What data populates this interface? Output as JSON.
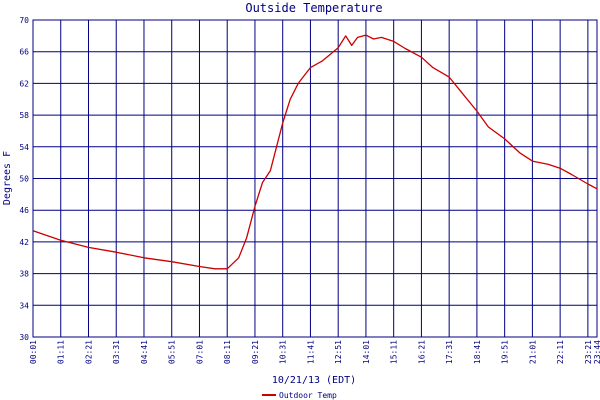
{
  "chart_data": {
    "type": "line",
    "title": "Outside Temperature",
    "ylabel": "Degrees F",
    "xlabel": "10/21/13 (EDT)",
    "ylim": [
      30,
      70
    ],
    "yticks": [
      30,
      34,
      38,
      42,
      46,
      50,
      54,
      58,
      62,
      66,
      70
    ],
    "xticks": [
      "00:01",
      "01:11",
      "02:21",
      "03:31",
      "04:41",
      "05:51",
      "07:01",
      "08:11",
      "09:21",
      "10:31",
      "11:41",
      "12:51",
      "14:01",
      "15:11",
      "16:21",
      "17:31",
      "18:41",
      "19:51",
      "21:01",
      "22:11",
      "23:21",
      "23:44"
    ],
    "grid": true,
    "legend": "bottom-left",
    "colors": {
      "line": "#cc0000",
      "grid": "#000080",
      "text": "#000080"
    },
    "series": [
      {
        "name": "Outdoor Temp",
        "x": [
          "00:01",
          "01:11",
          "02:21",
          "03:31",
          "04:41",
          "05:51",
          "07:01",
          "07:40",
          "08:11",
          "08:40",
          "09:00",
          "09:21",
          "09:40",
          "10:00",
          "10:31",
          "10:50",
          "11:10",
          "11:41",
          "12:10",
          "12:51",
          "13:10",
          "13:25",
          "13:40",
          "14:01",
          "14:20",
          "14:40",
          "15:11",
          "15:40",
          "16:21",
          "16:50",
          "17:31",
          "18:00",
          "18:41",
          "19:10",
          "19:51",
          "20:30",
          "21:01",
          "21:40",
          "22:11",
          "22:40",
          "23:21",
          "23:44"
        ],
        "values": [
          43.4,
          42.2,
          41.3,
          40.7,
          40.0,
          39.5,
          38.9,
          38.6,
          38.6,
          40.0,
          42.5,
          46.5,
          49.5,
          51.0,
          57.0,
          60.0,
          62.0,
          64.0,
          64.8,
          66.5,
          68.0,
          66.8,
          67.8,
          68.1,
          67.6,
          67.8,
          67.3,
          66.4,
          65.3,
          64.0,
          62.8,
          61.0,
          58.5,
          56.5,
          55.0,
          53.2,
          52.2,
          51.8,
          51.3,
          50.5,
          49.3,
          48.7
        ]
      }
    ]
  }
}
